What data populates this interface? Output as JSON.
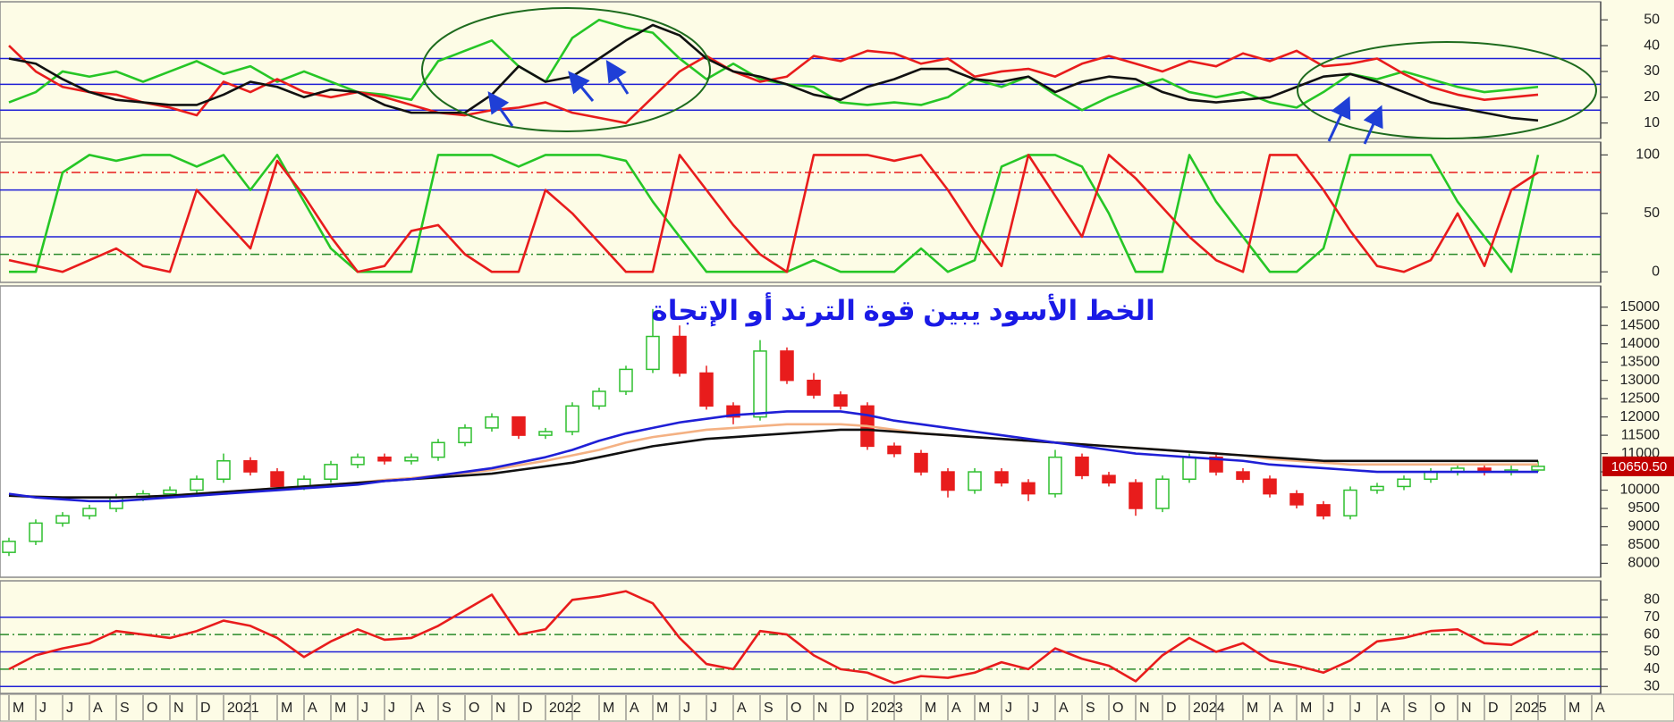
{
  "chart_data": [
    {
      "type": "line",
      "ylim": [
        4,
        57
      ],
      "yticks": [
        10,
        20,
        30,
        40,
        50
      ],
      "hlines": [
        {
          "value": 15,
          "color": "#1f1fd6",
          "style": "solid"
        },
        {
          "value": 25,
          "color": "#1f1fd6",
          "style": "solid"
        },
        {
          "value": 35,
          "color": "#1f1fd6",
          "style": "solid"
        }
      ],
      "series": [
        {
          "color": "#26c626",
          "values": [
            18,
            22,
            30,
            28,
            30,
            26,
            30,
            34,
            29,
            32,
            26,
            30,
            26,
            22,
            21,
            19,
            34,
            38,
            42,
            32,
            26,
            43,
            50,
            47,
            45,
            35,
            27,
            33,
            27,
            25,
            24,
            18,
            17,
            18,
            17,
            20,
            27,
            24,
            28,
            21,
            15,
            20,
            24,
            27,
            22,
            20,
            22,
            18,
            16,
            22,
            29,
            27,
            30,
            27,
            24,
            22,
            23,
            24,
            null,
            null
          ]
        },
        {
          "color": "#e81c1c",
          "values": [
            40,
            30,
            24,
            22,
            21,
            18,
            16,
            13,
            26,
            22,
            27,
            22,
            20,
            22,
            20,
            17,
            14,
            13,
            15,
            16,
            18,
            14,
            12,
            10,
            20,
            30,
            36,
            30,
            26,
            28,
            36,
            34,
            38,
            37,
            33,
            35,
            28,
            30,
            31,
            28,
            33,
            36,
            33,
            30,
            34,
            32,
            37,
            34,
            38,
            32,
            33,
            35,
            29,
            24,
            21,
            19,
            20,
            21,
            null,
            null
          ]
        },
        {
          "color": "#111111",
          "values": [
            35,
            33,
            27,
            22,
            19,
            18,
            17,
            17,
            21,
            26,
            24,
            20,
            23,
            22,
            17,
            14,
            14,
            14,
            21,
            32,
            26,
            28,
            35,
            42,
            48,
            44,
            35,
            30,
            28,
            25,
            21,
            19,
            24,
            27,
            31,
            31,
            27,
            26,
            28,
            22,
            26,
            28,
            27,
            22,
            19,
            18,
            19,
            20,
            24,
            28,
            29,
            26,
            22,
            18,
            16,
            14,
            12,
            11,
            null,
            null
          ]
        }
      ]
    },
    {
      "type": "line",
      "ylim": [
        -9,
        111
      ],
      "yticks": [
        0,
        50,
        100
      ],
      "hlines": [
        {
          "value": 85,
          "color": "#e81c1c",
          "style": "dashdot"
        },
        {
          "value": 70,
          "color": "#1f1fd6",
          "style": "solid"
        },
        {
          "value": 30,
          "color": "#1f1fd6",
          "style": "solid"
        },
        {
          "value": 15,
          "color": "#2a8a2a",
          "style": "dashdot"
        }
      ],
      "series": [
        {
          "color": "#26c626",
          "values": [
            0,
            0,
            85,
            100,
            95,
            100,
            100,
            90,
            100,
            70,
            100,
            60,
            20,
            0,
            0,
            0,
            100,
            100,
            100,
            90,
            100,
            100,
            100,
            95,
            60,
            30,
            0,
            0,
            0,
            0,
            10,
            0,
            0,
            0,
            20,
            0,
            10,
            90,
            100,
            100,
            90,
            50,
            0,
            0,
            100,
            60,
            30,
            0,
            0,
            20,
            100,
            100,
            100,
            100,
            60,
            30,
            0,
            100,
            null,
            null
          ]
        },
        {
          "color": "#e81c1c",
          "values": [
            10,
            5,
            0,
            10,
            20,
            5,
            0,
            70,
            45,
            20,
            95,
            65,
            30,
            0,
            5,
            35,
            40,
            15,
            0,
            0,
            70,
            50,
            25,
            0,
            0,
            100,
            70,
            40,
            15,
            0,
            100,
            100,
            100,
            95,
            100,
            70,
            35,
            5,
            100,
            65,
            30,
            100,
            80,
            55,
            30,
            10,
            0,
            100,
            100,
            70,
            35,
            5,
            0,
            10,
            50,
            5,
            70,
            85,
            null,
            null
          ]
        }
      ]
    },
    {
      "type": "candlestick",
      "title": "الخط الأسود يبين قوة الترند أو الإتجاة",
      "ylim": [
        7620,
        15580
      ],
      "yticks": [
        8000,
        8500,
        9000,
        9500,
        10000,
        10500,
        11000,
        11500,
        12000,
        12500,
        13000,
        13500,
        14000,
        14500,
        15000
      ],
      "last_price": {
        "value": 10650.5,
        "label": "10650.50"
      },
      "open": [
        8300,
        8600,
        9100,
        9300,
        9500,
        9800,
        9900,
        10000,
        10300,
        10800,
        10500,
        10100,
        10300,
        10700,
        10900,
        10800,
        10900,
        11300,
        11700,
        12000,
        11500,
        11600,
        12300,
        12700,
        13300,
        14200,
        13200,
        12300,
        12000,
        13800,
        13000,
        12600,
        12300,
        11200,
        11000,
        10500,
        10000,
        10500,
        10200,
        9900,
        10900,
        10400,
        10200,
        9500,
        10300,
        10900,
        10500,
        10300,
        9900,
        9600,
        9300,
        10000,
        10100,
        10300,
        10500,
        10600,
        10500,
        10550
      ],
      "high": [
        8700,
        9200,
        9400,
        9600,
        9900,
        10000,
        10100,
        10400,
        11000,
        10900,
        10600,
        10400,
        10800,
        11000,
        11000,
        11000,
        11400,
        11800,
        12100,
        12000,
        11700,
        12400,
        12800,
        13400,
        14950,
        14500,
        13400,
        12400,
        14100,
        13900,
        13200,
        12700,
        12400,
        11300,
        11100,
        10600,
        10600,
        10600,
        10300,
        11100,
        11000,
        10500,
        10300,
        10400,
        11000,
        11000,
        10600,
        10400,
        10000,
        9700,
        10100,
        10200,
        10400,
        10600,
        10700,
        10700,
        10700,
        10800
      ],
      "low": [
        8200,
        8500,
        9000,
        9200,
        9400,
        9700,
        9800,
        9900,
        10200,
        10400,
        10000,
        10000,
        10200,
        10600,
        10700,
        10700,
        10800,
        11200,
        11600,
        11400,
        11400,
        11500,
        12200,
        12600,
        13200,
        13100,
        12200,
        11800,
        11900,
        12900,
        12500,
        12200,
        11100,
        10900,
        10400,
        9800,
        9900,
        10100,
        9700,
        9800,
        10300,
        10100,
        9300,
        9400,
        10200,
        10400,
        10200,
        9800,
        9500,
        9200,
        9200,
        9900,
        10000,
        10200,
        10400,
        10400,
        10400,
        10500
      ],
      "close": [
        8600,
        9100,
        9300,
        9500,
        9800,
        9900,
        10000,
        10300,
        10800,
        10500,
        10100,
        10300,
        10700,
        10900,
        10800,
        10900,
        11300,
        11700,
        12000,
        11500,
        11600,
        12300,
        12700,
        13300,
        14200,
        13200,
        12300,
        12000,
        13800,
        13000,
        12600,
        12300,
        11200,
        11000,
        10500,
        10000,
        10500,
        10200,
        9900,
        10900,
        10400,
        10200,
        9500,
        10300,
        10900,
        10500,
        10300,
        9900,
        9600,
        9300,
        10000,
        10100,
        10300,
        10500,
        10600,
        10500,
        10550,
        10650
      ],
      "up_color": "#2fbf2f",
      "down_color": "#e81c1c",
      "series": [
        {
          "color": "#f4b183",
          "values": [
            9850,
            9820,
            9800,
            9800,
            9800,
            9820,
            9850,
            9900,
            9950,
            10000,
            10050,
            10100,
            10150,
            10200,
            10280,
            10330,
            10400,
            10470,
            10550,
            10680,
            10800,
            10950,
            11100,
            11300,
            11450,
            11550,
            11650,
            11700,
            11750,
            11800,
            11800,
            11800,
            11750,
            11650,
            11550,
            11500,
            11450,
            11400,
            11350,
            11300,
            11250,
            11200,
            11150,
            11100,
            11050,
            11000,
            10950,
            10850,
            10800,
            10750,
            10700,
            10700,
            10700,
            10700,
            10700,
            10700,
            10700,
            10700
          ]
        },
        {
          "color": "#111111",
          "values": [
            9850,
            9820,
            9800,
            9800,
            9800,
            9820,
            9850,
            9900,
            9950,
            10000,
            10050,
            10100,
            10150,
            10200,
            10250,
            10300,
            10350,
            10400,
            10450,
            10550,
            10650,
            10750,
            10900,
            11050,
            11200,
            11300,
            11400,
            11450,
            11500,
            11550,
            11600,
            11650,
            11650,
            11600,
            11550,
            11500,
            11450,
            11400,
            11350,
            11300,
            11250,
            11200,
            11150,
            11100,
            11050,
            11000,
            10950,
            10900,
            10850,
            10800,
            10800,
            10800,
            10800,
            10800,
            10800,
            10800,
            10800,
            10800
          ]
        },
        {
          "color": "#1f1fd6",
          "values": [
            9900,
            9800,
            9750,
            9700,
            9700,
            9750,
            9800,
            9850,
            9900,
            9950,
            10000,
            10050,
            10100,
            10150,
            10250,
            10300,
            10400,
            10500,
            10600,
            10750,
            10900,
            11100,
            11350,
            11550,
            11700,
            11850,
            11950,
            12050,
            12100,
            12150,
            12150,
            12150,
            12050,
            11900,
            11800,
            11700,
            11600,
            11500,
            11400,
            11300,
            11200,
            11100,
            11000,
            10950,
            10900,
            10850,
            10800,
            10700,
            10650,
            10600,
            10550,
            10500,
            10500,
            10500,
            10500,
            10500,
            10500,
            10500
          ]
        }
      ]
    },
    {
      "type": "line",
      "ylim": [
        26,
        91
      ],
      "yticks": [
        30,
        40,
        50,
        60,
        70,
        80
      ],
      "hlines": [
        {
          "value": 70,
          "color": "#1f1fd6",
          "style": "solid"
        },
        {
          "value": 60,
          "color": "#2a8a2a",
          "style": "dashdot"
        },
        {
          "value": 50,
          "color": "#1f1fd6",
          "style": "solid"
        },
        {
          "value": 40,
          "color": "#2a8a2a",
          "style": "dashdot"
        },
        {
          "value": 30,
          "color": "#1f1fd6",
          "style": "solid"
        }
      ],
      "categories": [
        "M",
        "J",
        "J",
        "A",
        "S",
        "O",
        "N",
        "D",
        "2021",
        null,
        "M",
        "A",
        "M",
        "J",
        "J",
        "A",
        "S",
        "O",
        "N",
        "D",
        "2022",
        null,
        "M",
        "A",
        "M",
        "J",
        "J",
        "A",
        "S",
        "O",
        "N",
        "D",
        "2023",
        null,
        "M",
        "A",
        "M",
        "J",
        "J",
        "A",
        "S",
        "O",
        "N",
        "D",
        "2024",
        null,
        "M",
        "A",
        "M",
        "J",
        "J",
        "A",
        "S",
        "O",
        "N",
        "D",
        "2025",
        null,
        "M",
        "A"
      ],
      "series": [
        {
          "color": "#e81c1c",
          "values": [
            40,
            48,
            52,
            55,
            62,
            60,
            58,
            62,
            68,
            65,
            58,
            47,
            56,
            63,
            57,
            58,
            65,
            74,
            83,
            60,
            63,
            80,
            82,
            85,
            78,
            58,
            43,
            40,
            62,
            60,
            48,
            40,
            38,
            32,
            36,
            35,
            38,
            44,
            40,
            52,
            46,
            42,
            33,
            48,
            58,
            50,
            55,
            45,
            42,
            38,
            45,
            56,
            58,
            62,
            63,
            55,
            54,
            62,
            null,
            null
          ]
        }
      ]
    }
  ]
}
